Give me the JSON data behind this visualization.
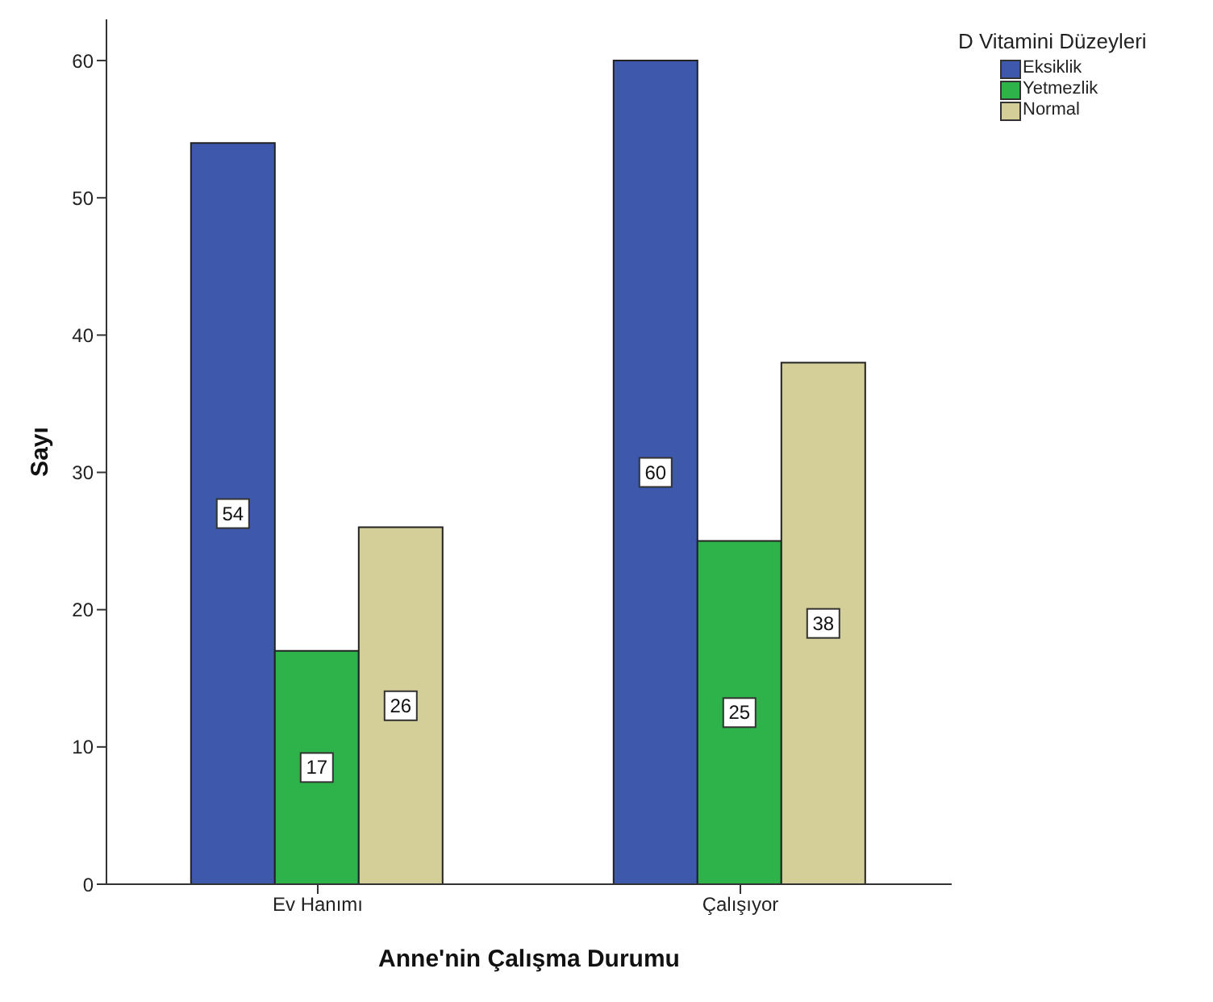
{
  "chart_data": {
    "type": "bar",
    "xlabel": "Anne'nin Çalışma Durumu",
    "ylabel": "Sayı",
    "legend_title": "D Vitamini Düzeyleri",
    "categories": [
      "Ev Hanımı",
      "Çalışıyor"
    ],
    "series": [
      {
        "name": "Eksiklik",
        "color": "#3e58ac",
        "values": [
          54,
          60
        ]
      },
      {
        "name": "Yetmezlik",
        "color": "#2db34a",
        "values": [
          17,
          25
        ]
      },
      {
        "name": "Normal",
        "color": "#d4cf98",
        "values": [
          26,
          38
        ]
      }
    ],
    "ylim": [
      0,
      63
    ],
    "yticks": [
      0,
      10,
      20,
      30,
      40,
      50,
      60
    ],
    "grid": false,
    "legend": "top right",
    "data_labels": true
  }
}
